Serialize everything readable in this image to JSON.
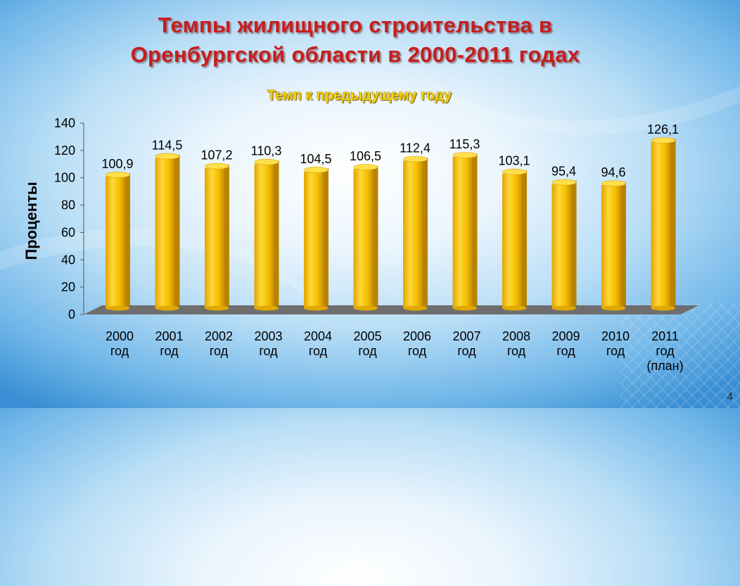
{
  "slide": {
    "title_line1": "Темпы жилищного строительства в",
    "title_line2": "Оренбургской области в 2000-2011 годах",
    "page_number": "4"
  },
  "colors": {
    "bar": "#f5bf00",
    "floor": "#6e6e6e",
    "title": "#c81d1d",
    "subtitle": "#f6d200"
  },
  "chart_data": {
    "type": "bar",
    "title": "Темп к предыдущему году",
    "ylabel": "Проценты",
    "xlabel": "",
    "ylim": [
      0,
      140
    ],
    "yticks": [
      0,
      20,
      40,
      60,
      80,
      100,
      120,
      140
    ],
    "categories": [
      "2000 год",
      "2001 год",
      "2002 год",
      "2003 год",
      "2004 год",
      "2005 год",
      "2006 год",
      "2007 год",
      "2008 год",
      "2009 год",
      "2010 год",
      "2011 год (план)"
    ],
    "category_lines": [
      [
        "2000",
        "год"
      ],
      [
        "2001",
        "год"
      ],
      [
        "2002",
        "год"
      ],
      [
        "2003",
        "год"
      ],
      [
        "2004",
        "год"
      ],
      [
        "2005",
        "год"
      ],
      [
        "2006",
        "год"
      ],
      [
        "2007",
        "год"
      ],
      [
        "2008",
        "год"
      ],
      [
        "2009",
        "год"
      ],
      [
        "2010",
        "год"
      ],
      [
        "2011",
        "год",
        "(план)"
      ]
    ],
    "values": [
      100.9,
      114.5,
      107.2,
      110.3,
      104.5,
      106.5,
      112.4,
      115.3,
      103.1,
      95.4,
      94.6,
      126.1
    ],
    "data_labels": [
      "100,9",
      "114,5",
      "107,2",
      "110,3",
      "104,5",
      "106,5",
      "112,4",
      "115,3",
      "103,1",
      "95,4",
      "94,6",
      "126,1"
    ],
    "grid": false,
    "legend": "none"
  }
}
